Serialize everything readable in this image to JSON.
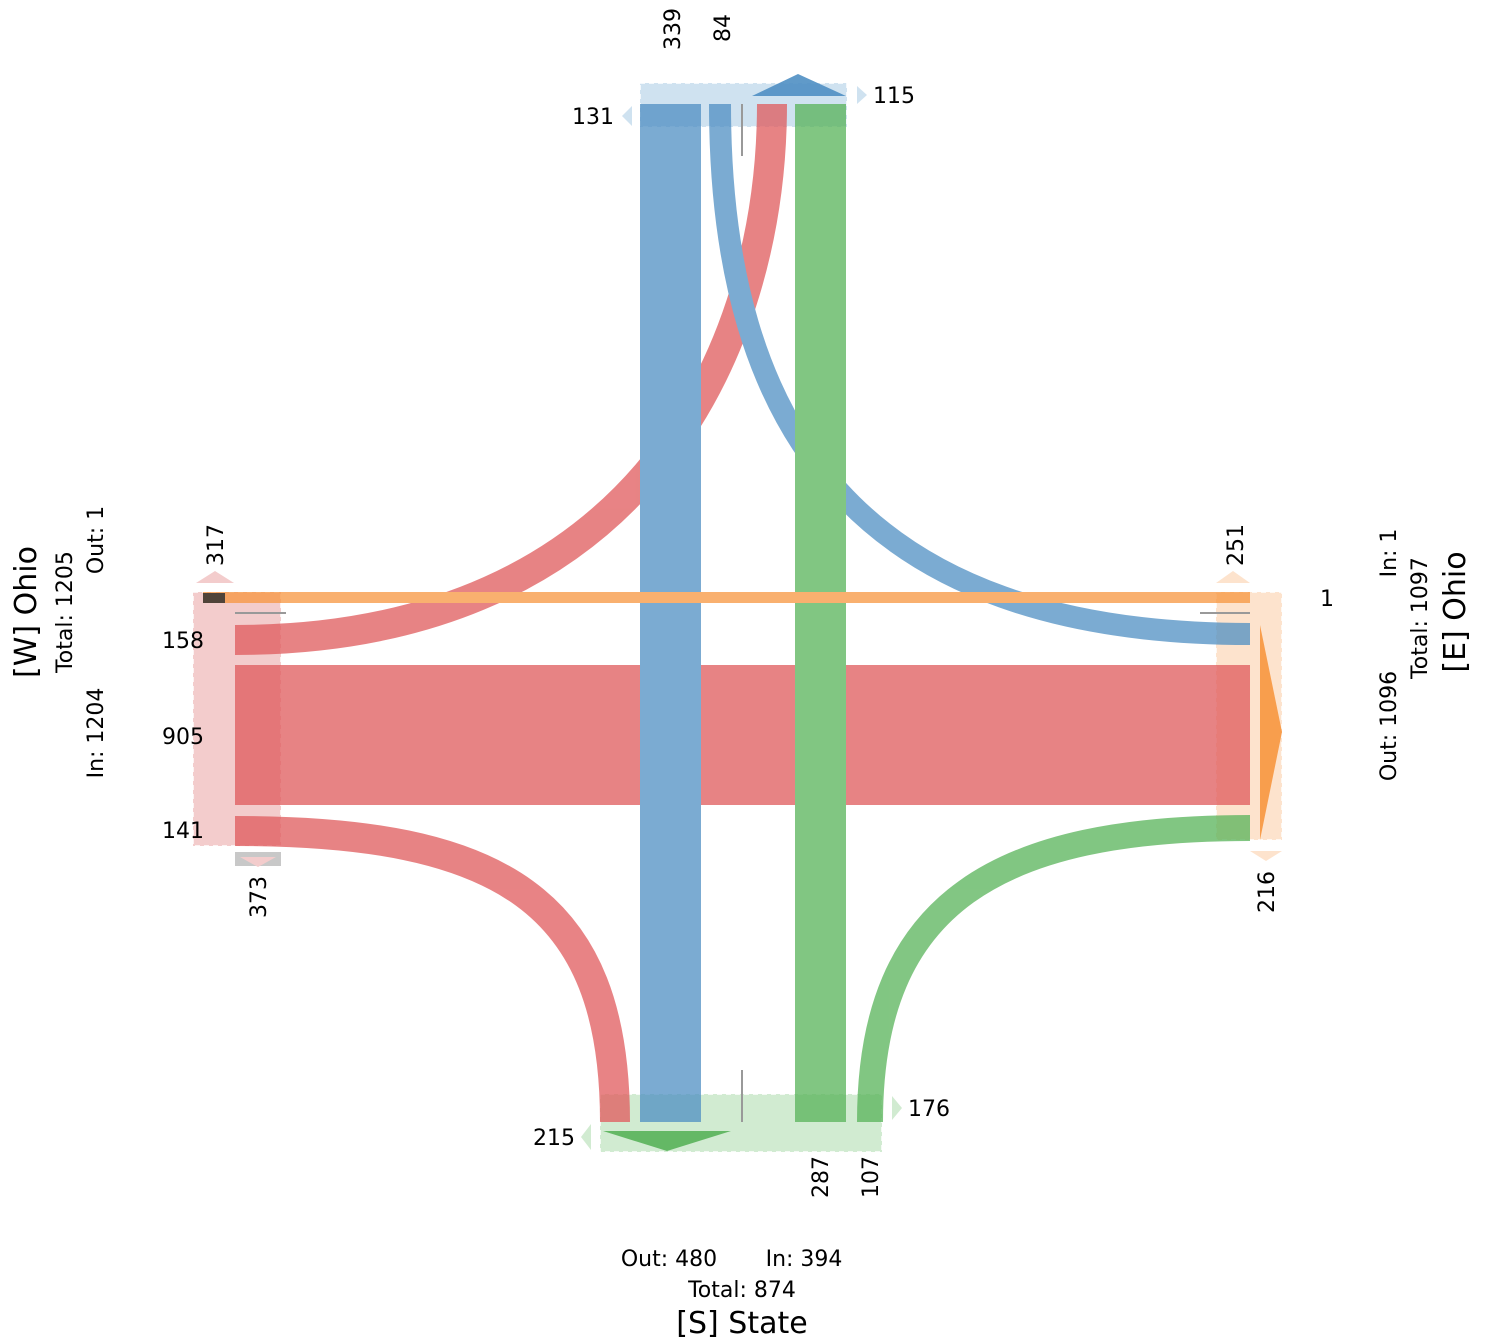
{
  "colors": {
    "red": "#e05a5c",
    "blue": "#4f8fc3",
    "green": "#58b359",
    "orange": "#f7963f",
    "red_light": "#f3cccc",
    "blue_light": "#cfe2f0",
    "green_light": "#d1ebd1",
    "orange_light": "#fde3cd"
  },
  "chart_data": {
    "type": "turning-movement-diagram",
    "approaches": [
      {
        "id": "W",
        "title": "[W] Ohio",
        "total": "Total: 1205",
        "out": "Out: 1",
        "in": "In: 1204"
      },
      {
        "id": "E",
        "title": "[E] Ohio",
        "total": "Total: 1097",
        "in": "In: 1",
        "out": "Out: 1096"
      },
      {
        "id": "S",
        "title": "[S] State",
        "total": "Total: 874",
        "out": "Out: 480",
        "in": "In: 394"
      }
    ],
    "north_labels": {
      "approach_a": "339",
      "approach_b": "84",
      "left_turn_exit": "131",
      "right_turn_exit": "115"
    },
    "west_labels": {
      "top": "317",
      "bottom": "373",
      "movement_a": "158",
      "movement_b": "905",
      "movement_c": "141"
    },
    "east_labels": {
      "top": "251",
      "bottom": "216",
      "movement": "1"
    },
    "south_labels": {
      "left_exit": "215",
      "right_exit": "176",
      "movement_a": "287",
      "movement_b": "107"
    },
    "movements": [
      {
        "color": "blue",
        "from": "N",
        "to": "S",
        "value": 339
      },
      {
        "color": "blue",
        "from": "N",
        "to": "E",
        "value": 84
      },
      {
        "color": "green",
        "from": "S",
        "to": "N",
        "value": 287
      },
      {
        "color": "green",
        "from": "S",
        "to": "E",
        "value": 107
      },
      {
        "color": "red",
        "from": "W",
        "to": "N",
        "value": 158
      },
      {
        "color": "red",
        "from": "W",
        "to": "E",
        "value": 905
      },
      {
        "color": "red",
        "from": "W",
        "to": "S",
        "value": 141
      },
      {
        "color": "orange",
        "from": "E",
        "to": "W",
        "value": 1
      }
    ]
  }
}
